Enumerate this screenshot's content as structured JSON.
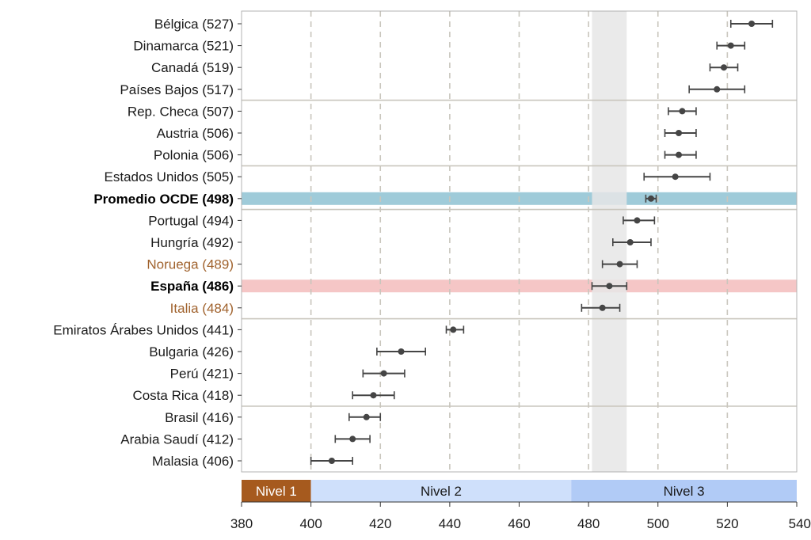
{
  "chart_data": {
    "type": "scatter",
    "xlim": [
      380,
      540
    ],
    "x_ticks": [
      380,
      400,
      420,
      440,
      460,
      480,
      500,
      520,
      540
    ],
    "grid": "vertical dashed",
    "rows": [
      {
        "label": "Bélgica (527)",
        "value": 527,
        "low": 521,
        "high": 533,
        "style": "normal"
      },
      {
        "label": "Dinamarca (521)",
        "value": 521,
        "low": 517,
        "high": 525,
        "style": "normal"
      },
      {
        "label": "Canadá (519)",
        "value": 519,
        "low": 515,
        "high": 523,
        "style": "normal"
      },
      {
        "label": "Países Bajos (517)",
        "value": 517,
        "low": 509,
        "high": 525,
        "style": "normal"
      },
      {
        "label": "Rep. Checa (507)",
        "value": 507,
        "low": 503,
        "high": 511,
        "style": "normal"
      },
      {
        "label": "Austria (506)",
        "value": 506,
        "low": 502,
        "high": 511,
        "style": "normal"
      },
      {
        "label": "Polonia (506)",
        "value": 506,
        "low": 502,
        "high": 511,
        "style": "normal"
      },
      {
        "label": "Estados Unidos (505)",
        "value": 505,
        "low": 496,
        "high": 515,
        "style": "normal"
      },
      {
        "label": "Promedio OCDE (498)",
        "value": 498,
        "low": 496.5,
        "high": 499.5,
        "style": "bold",
        "highlight": "#9fcbd9"
      },
      {
        "label": "Portugal (494)",
        "value": 494,
        "low": 490,
        "high": 499,
        "style": "normal"
      },
      {
        "label": "Hungría (492)",
        "value": 492,
        "low": 487,
        "high": 498,
        "style": "normal"
      },
      {
        "label": "Noruega (489)",
        "value": 489,
        "low": 484,
        "high": 494,
        "style": "brown"
      },
      {
        "label": "España (486)",
        "value": 486,
        "low": 481,
        "high": 491,
        "style": "bold",
        "highlight": "#f5c6c6"
      },
      {
        "label": "Italia (484)",
        "value": 484,
        "low": 478,
        "high": 489,
        "style": "brown"
      },
      {
        "label": "Emiratos Árabes Unidos (441)",
        "value": 441,
        "low": 439,
        "high": 444,
        "style": "normal"
      },
      {
        "label": "Bulgaria (426)",
        "value": 426,
        "low": 419,
        "high": 433,
        "style": "normal"
      },
      {
        "label": "Perú (421)",
        "value": 421,
        "low": 415,
        "high": 427,
        "style": "normal"
      },
      {
        "label": "Costa Rica (418)",
        "value": 418,
        "low": 412,
        "high": 424,
        "style": "normal"
      },
      {
        "label": "Brasil (416)",
        "value": 416,
        "low": 411,
        "high": 420,
        "style": "normal"
      },
      {
        "label": "Arabia Saudí (412)",
        "value": 412,
        "low": 407,
        "high": 417,
        "style": "normal"
      },
      {
        "label": "Malasia (406)",
        "value": 406,
        "low": 400,
        "high": 412,
        "style": "normal"
      }
    ],
    "group_separators_after": [
      3,
      6,
      8,
      13,
      17
    ],
    "shaded_range": [
      481,
      491
    ],
    "levels": [
      {
        "label": "Nivel 1",
        "from": 380,
        "to": 400,
        "color": "#a65a1e"
      },
      {
        "label": "Nivel 2",
        "from": 400,
        "to": 475,
        "color": "#cfe0fb"
      },
      {
        "label": "Nivel 3",
        "from": 475,
        "to": 540,
        "color": "#b1cbf6"
      }
    ],
    "colors": {
      "point": "#454545",
      "grid": "#c9c6bd",
      "separator": "#c9c6bd",
      "shade": "#e6e6e6",
      "bold_label": "#000000",
      "brown_label": "#a0622d"
    }
  }
}
